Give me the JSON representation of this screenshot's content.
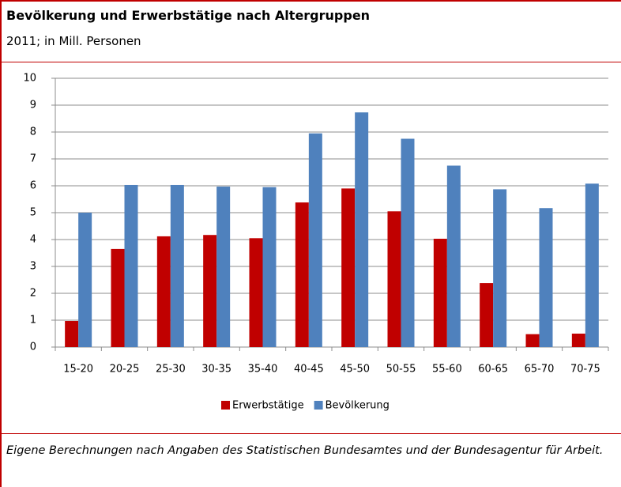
{
  "chart_data": {
    "type": "bar",
    "title": "Bevölkerung und Erwerbstätige nach Altergruppen",
    "subtitle": "2011; in Mill. Personen",
    "footnote": "Eigene Berechnungen nach Angaben des Statistischen Bundesamtes und der Bundesagentur für Arbeit.",
    "categories": [
      "15-20",
      "20-25",
      "25-30",
      "30-35",
      "35-40",
      "40-45",
      "45-50",
      "50-55",
      "55-60",
      "60-65",
      "65-70",
      "70-75"
    ],
    "series": [
      {
        "name": "Erwerbstätige",
        "color": "#c00000",
        "values": [
          0.97,
          3.65,
          4.12,
          4.17,
          4.05,
          5.38,
          5.9,
          5.05,
          4.03,
          2.38,
          0.48,
          0.5
        ]
      },
      {
        "name": "Bevölkerung",
        "color": "#4f81bd",
        "values": [
          5.0,
          6.03,
          6.03,
          5.97,
          5.95,
          7.95,
          8.73,
          7.75,
          6.75,
          5.87,
          5.17,
          6.08
        ]
      }
    ],
    "ylim": [
      0,
      10
    ],
    "yticks": [
      0,
      1,
      2,
      3,
      4,
      5,
      6,
      7,
      8,
      9,
      10
    ],
    "grid": true,
    "legend": "bottom"
  }
}
